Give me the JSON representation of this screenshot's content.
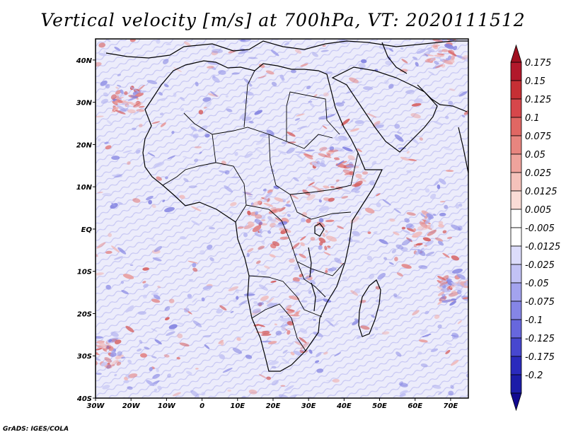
{
  "title": "Vertical velocity [m/s] at 700hPa, VT: 2020111512",
  "footer": "GrADS: IGES/COLA",
  "lat_labels": [
    "40N",
    "30N",
    "20N",
    "10N",
    "EQ",
    "10S",
    "20S",
    "30S",
    "40S"
  ],
  "lon_labels": [
    "30W",
    "20W",
    "10W",
    "0",
    "10E",
    "20E",
    "30E",
    "40E",
    "50E",
    "60E",
    "70E"
  ],
  "colorbar": {
    "labels": [
      "0.175",
      "0.15",
      "0.125",
      "0.1",
      "0.075",
      "0.05",
      "0.025",
      "0.0125",
      "0.005",
      "-0.005",
      "-0.0125",
      "-0.025",
      "-0.05",
      "-0.075",
      "-0.1",
      "-0.125",
      "-0.175",
      "-0.2"
    ],
    "colors": [
      "#b2182b",
      "#c62f34",
      "#d6474b",
      "#e06763",
      "#e8857f",
      "#efa39c",
      "#f5c2bb",
      "#fadcd6",
      "#ffffff",
      "#ffffff",
      "#dcdcfb",
      "#c2c2f5",
      "#a3a3ee",
      "#8585e6",
      "#6767dd",
      "#4747cf",
      "#2a2abd",
      "#1c1ca8"
    ]
  },
  "map": {
    "extent": {
      "lon_min": -30,
      "lon_max": 75,
      "lat_min": -40,
      "lat_max": 45
    },
    "field_colors": {
      "background": "#ececfb",
      "ascent": "#e6a0a0",
      "descent": "#a8a8ec"
    }
  }
}
